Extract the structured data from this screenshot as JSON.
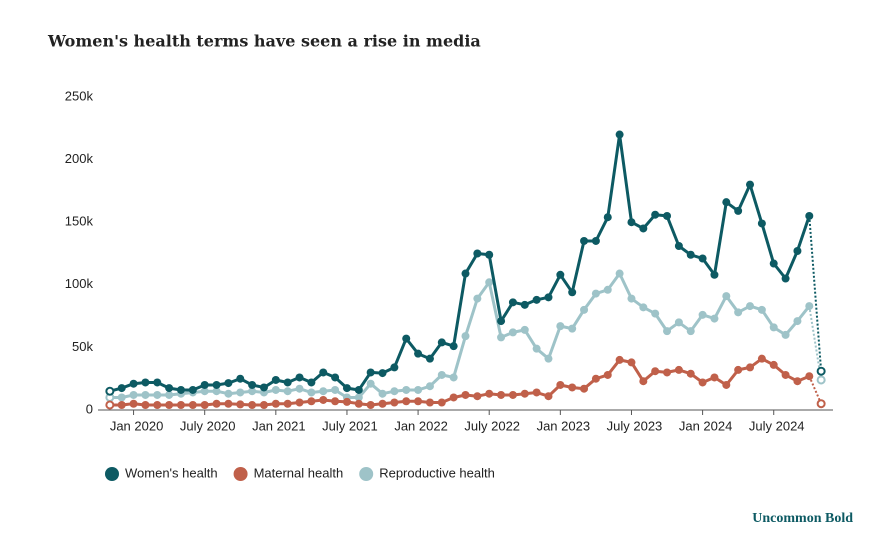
{
  "chart_data": {
    "type": "line",
    "title": "Women's health terms have seen a rise in media",
    "credit": "Uncommon Bold",
    "x": [
      "2019-11",
      "2019-12",
      "2020-01",
      "2020-02",
      "2020-03",
      "2020-04",
      "2020-05",
      "2020-06",
      "2020-07",
      "2020-08",
      "2020-09",
      "2020-10",
      "2020-11",
      "2020-12",
      "2021-01",
      "2021-02",
      "2021-03",
      "2021-04",
      "2021-05",
      "2021-06",
      "2021-07",
      "2021-08",
      "2021-09",
      "2021-10",
      "2021-11",
      "2021-12",
      "2022-01",
      "2022-02",
      "2022-03",
      "2022-04",
      "2022-05",
      "2022-06",
      "2022-07",
      "2022-08",
      "2022-09",
      "2022-10",
      "2022-11",
      "2022-12",
      "2023-01",
      "2023-02",
      "2023-03",
      "2023-04",
      "2023-05",
      "2023-06",
      "2023-07",
      "2023-08",
      "2023-09",
      "2023-10",
      "2023-11",
      "2023-12",
      "2024-01",
      "2024-02",
      "2024-03",
      "2024-04",
      "2024-05",
      "2024-06",
      "2024-07",
      "2024-08",
      "2024-09",
      "2024-10",
      "2024-11"
    ],
    "xlim": [
      "2019-10",
      "2024-12"
    ],
    "xticks": [
      {
        "value": "2020-01",
        "label": "Jan 2020"
      },
      {
        "value": "2020-07",
        "label": "July 2020"
      },
      {
        "value": "2021-01",
        "label": "Jan 2021"
      },
      {
        "value": "2021-07",
        "label": "July 2021"
      },
      {
        "value": "2022-01",
        "label": "Jan 2022"
      },
      {
        "value": "2022-07",
        "label": "July 2022"
      },
      {
        "value": "2023-01",
        "label": "Jan 2023"
      },
      {
        "value": "2023-07",
        "label": "July 2023"
      },
      {
        "value": "2024-01",
        "label": "Jan 2024"
      },
      {
        "value": "2024-07",
        "label": "July 2024"
      }
    ],
    "ylim": [
      0,
      250000
    ],
    "yticks": [
      0,
      {
        "value": 50000,
        "label": "50k"
      },
      {
        "value": 100000,
        "label": "100k"
      },
      {
        "value": 150000,
        "label": "150k"
      },
      {
        "value": 200000,
        "label": "200k"
      },
      {
        "value": 250000,
        "label": "250k"
      }
    ],
    "hollow_ends": true,
    "legend": "bottom-left",
    "series": [
      {
        "name": "Women's health",
        "color": "#0d5a63",
        "values": [
          15000,
          17500,
          21000,
          22000,
          22000,
          17500,
          16000,
          16000,
          20000,
          20000,
          21500,
          25000,
          20000,
          18000,
          24000,
          22000,
          26000,
          22000,
          30000,
          26000,
          17500,
          16000,
          30000,
          29500,
          34000,
          57000,
          45000,
          41000,
          54000,
          51000,
          109000,
          125000,
          124000,
          71000,
          86000,
          84000,
          88000,
          90000,
          108000,
          94000,
          135000,
          135000,
          154000,
          220000,
          150000,
          145000,
          156000,
          155000,
          131000,
          124000,
          121000,
          108000,
          166000,
          159000,
          180000,
          149000,
          117000,
          105000,
          127000,
          155000,
          31000
        ]
      },
      {
        "name": "Maternal health",
        "color": "#c0604a",
        "values": [
          4000,
          4000,
          5000,
          4000,
          4000,
          4000,
          4000,
          4000,
          4000,
          5000,
          5000,
          4500,
          4000,
          4000,
          5000,
          5000,
          6000,
          7000,
          8000,
          7000,
          6500,
          5000,
          4000,
          5000,
          6000,
          7000,
          7000,
          6000,
          6000,
          10000,
          12000,
          11000,
          13000,
          12000,
          12000,
          13000,
          14000,
          11000,
          20000,
          18000,
          17000,
          25000,
          28000,
          40000,
          38000,
          23000,
          31000,
          30000,
          32000,
          29000,
          22000,
          26000,
          20000,
          32000,
          34000,
          41000,
          36000,
          28000,
          23000,
          27000,
          5000
        ]
      },
      {
        "name": "Reproductive health",
        "color": "#9ec3c8",
        "values": [
          10000,
          10000,
          12000,
          12000,
          12000,
          12000,
          13000,
          14000,
          15000,
          15000,
          13000,
          14000,
          15000,
          14000,
          16000,
          15000,
          17000,
          14000,
          15000,
          16000,
          10000,
          10000,
          21000,
          13000,
          15000,
          16000,
          16000,
          19000,
          28000,
          26000,
          59000,
          89000,
          102000,
          58000,
          62000,
          64000,
          49000,
          41000,
          67000,
          65000,
          80000,
          93000,
          96000,
          109000,
          89000,
          82000,
          77000,
          63000,
          70000,
          63000,
          76000,
          73000,
          91000,
          78000,
          83000,
          80000,
          66000,
          60000,
          71000,
          83000,
          24000
        ]
      }
    ]
  }
}
